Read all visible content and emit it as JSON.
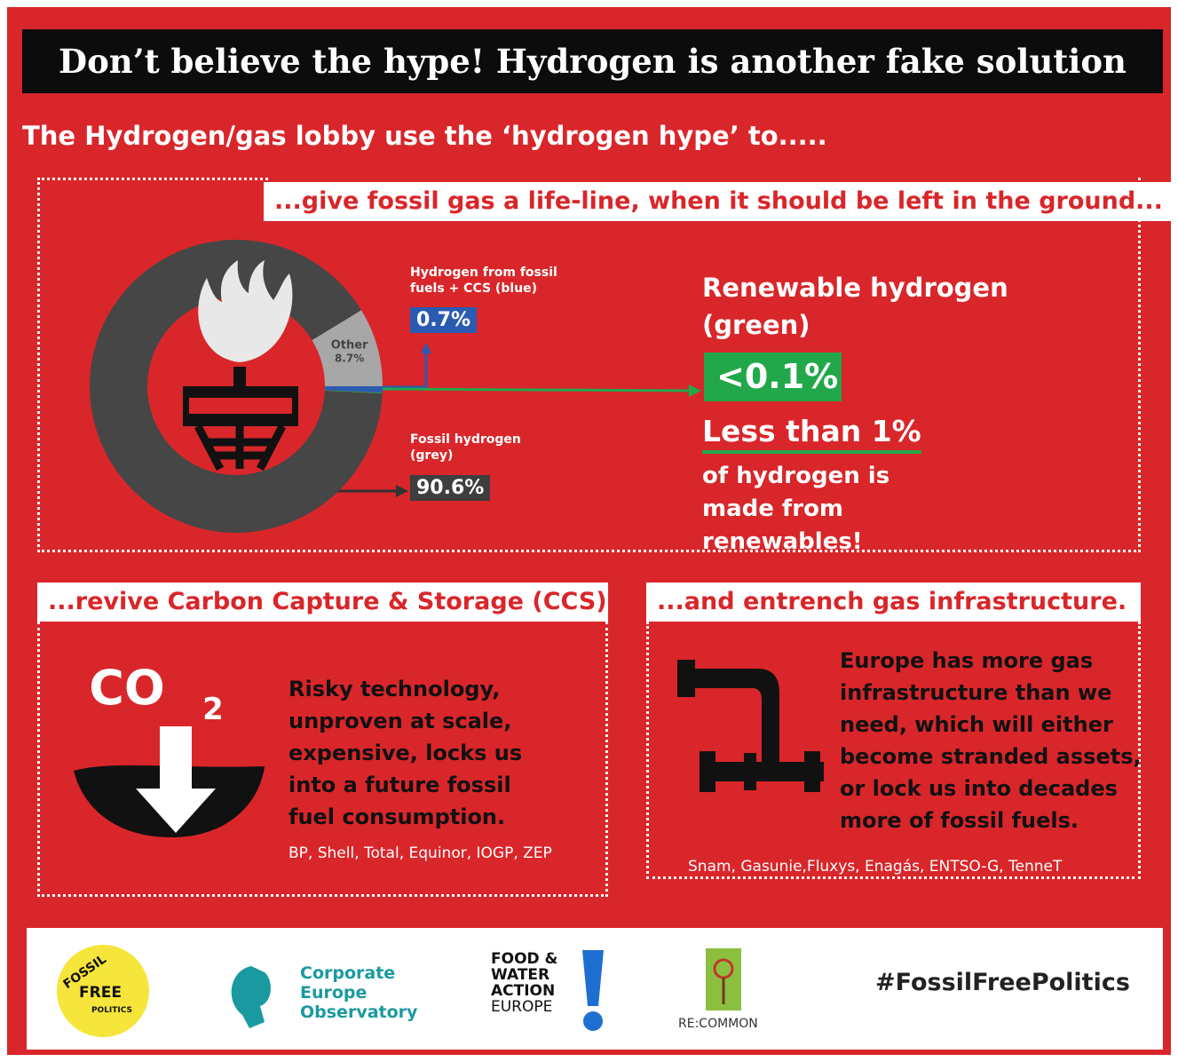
{
  "header": {
    "title": "Don’t believe the hype! Hydrogen is another fake solution",
    "subtitle": "The Hydrogen/gas lobby use the ‘hydrogen hype’ to....."
  },
  "sections": [
    {
      "heading": "...give fossil gas a life-line, when it should be left in the ground...",
      "claim": "Less than 1%",
      "claim_text": "of hydrogen is made from renewables!"
    },
    {
      "heading": "...revive Carbon Capture & Storage (CCS)...",
      "icon_text": "CO",
      "icon_subscript": "2",
      "text": "Risky technology, unproven at scale, expensive, locks us into a future fossil fuel consumption.",
      "companies": "BP, Shell, Total, Equinor, IOGP, ZEP"
    },
    {
      "heading": "...and entrench gas infrastructure.",
      "text": "Europe has more gas infrastructure than we need, which will either become stranded assets, or lock us into decades more of fossil fuels.",
      "companies": "Snam, Gasunie,Fluxys, Enagás, ENTSO-G, TenneT"
    }
  ],
  "chart_data": {
    "type": "donut",
    "categories": [
      "Other",
      "Hydrogen from fossil fuels + CCS (blue)",
      "Renewable hydrogen (green)",
      "Fossil hydrogen (grey)"
    ],
    "values": [
      8.7,
      0.7,
      0.1,
      90.6
    ],
    "value_labels": [
      "8.7%",
      "0.7%",
      "<0.1%",
      "90.6%"
    ],
    "colors": [
      "#a7a7a7",
      "#2a5bb0",
      "#22a84a",
      "#464646"
    ]
  },
  "footer": {
    "logos": [
      "FOSSIL",
      "FREE",
      "POLITICS",
      "Corporate Europe Observatory",
      "FOOD &",
      "WATER",
      "ACTION",
      "EUROPE",
      "RE:COMMON"
    ],
    "hashtag": "#FossilFreePolitics"
  }
}
